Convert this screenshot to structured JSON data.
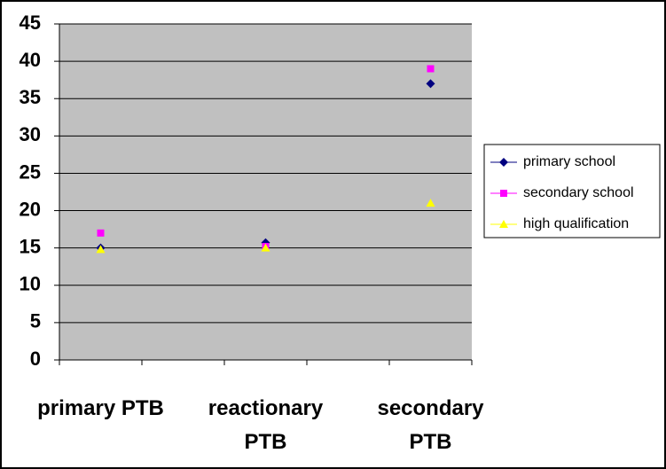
{
  "chart_data": {
    "type": "scatter",
    "categories": [
      "primary PTB",
      null,
      "reactionary PTB",
      null,
      "secondary PTB"
    ],
    "series": [
      {
        "name": "primary school",
        "color": "#000080",
        "marker": "diamond",
        "values": [
          15,
          null,
          15.7,
          null,
          37
        ]
      },
      {
        "name": "secondary school",
        "color": "#ff00ff",
        "marker": "square",
        "values": [
          17,
          null,
          15.2,
          null,
          39
        ]
      },
      {
        "name": "high qualification",
        "color": "#ffff00",
        "marker": "triangle",
        "values": [
          14.8,
          null,
          15,
          null,
          21
        ]
      }
    ],
    "ylim": [
      0,
      45
    ],
    "yticks": [
      0,
      5,
      10,
      15,
      20,
      25,
      30,
      35,
      40,
      45
    ],
    "grid": true,
    "legend": "right"
  }
}
